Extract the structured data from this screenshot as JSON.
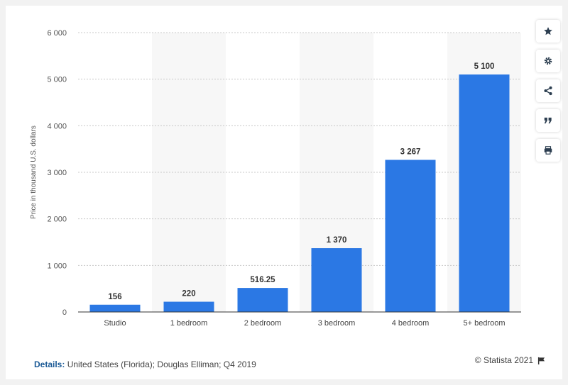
{
  "chart_data": {
    "type": "bar",
    "categories": [
      "Studio",
      "1 bedroom",
      "2 bedroom",
      "3 bedroom",
      "4 bedroom",
      "5+ bedroom"
    ],
    "values": [
      156,
      220,
      516.25,
      1370,
      3267,
      5100
    ],
    "value_labels": [
      "156",
      "220",
      "516.25",
      "1 370",
      "3 267",
      "5 100"
    ],
    "ylabel": "Price in thousand U.S. dollars",
    "ylim": [
      0,
      6000
    ],
    "yticks": [
      0,
      1000,
      2000,
      3000,
      4000,
      5000,
      6000
    ],
    "ytick_labels": [
      "0",
      "1 000",
      "2 000",
      "3 000",
      "4 000",
      "5 000",
      "6 000"
    ],
    "bar_color": "#2b78e4",
    "alt_band_color": "#f7f7f7",
    "grid": true
  },
  "toolbar": {
    "buttons": [
      {
        "name": "favorite-button",
        "icon": "star-icon"
      },
      {
        "name": "settings-button",
        "icon": "gear-icon"
      },
      {
        "name": "share-button",
        "icon": "share-icon"
      },
      {
        "name": "cite-button",
        "icon": "quote-icon"
      },
      {
        "name": "print-button",
        "icon": "print-icon"
      }
    ]
  },
  "footer": {
    "details_label": "Details:",
    "details_text": "United States (Florida); Douglas Elliman; Q4 2019",
    "credit": "© Statista 2021"
  }
}
